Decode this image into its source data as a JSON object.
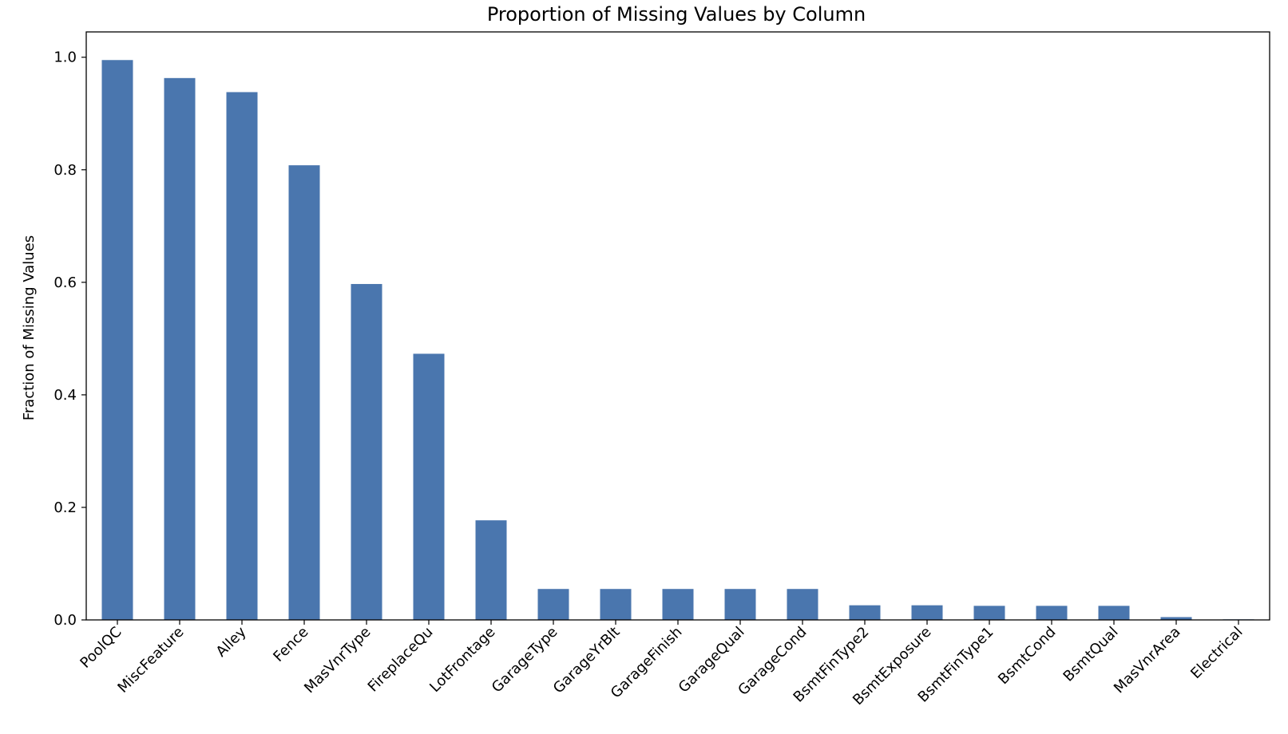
{
  "chart_data": {
    "type": "bar",
    "title": "Proportion of Missing Values by Column",
    "xlabel": "",
    "ylabel": "Fraction of Missing Values",
    "categories": [
      "PoolQC",
      "MiscFeature",
      "Alley",
      "Fence",
      "MasVnrType",
      "FireplaceQu",
      "LotFrontage",
      "GarageType",
      "GarageYrBlt",
      "GarageFinish",
      "GarageQual",
      "GarageCond",
      "BsmtFinType2",
      "BsmtExposure",
      "BsmtFinType1",
      "BsmtCond",
      "BsmtQual",
      "MasVnrArea",
      "Electrical"
    ],
    "values": [
      0.995,
      0.963,
      0.938,
      0.808,
      0.597,
      0.473,
      0.177,
      0.055,
      0.055,
      0.055,
      0.055,
      0.055,
      0.026,
      0.026,
      0.025,
      0.025,
      0.025,
      0.005,
      0.001
    ],
    "yticks": [
      "0.0",
      "0.2",
      "0.4",
      "0.6",
      "0.8",
      "1.0"
    ],
    "ylim": [
      0,
      1.045
    ],
    "grid": false,
    "bar_color": "#4a76ae"
  }
}
